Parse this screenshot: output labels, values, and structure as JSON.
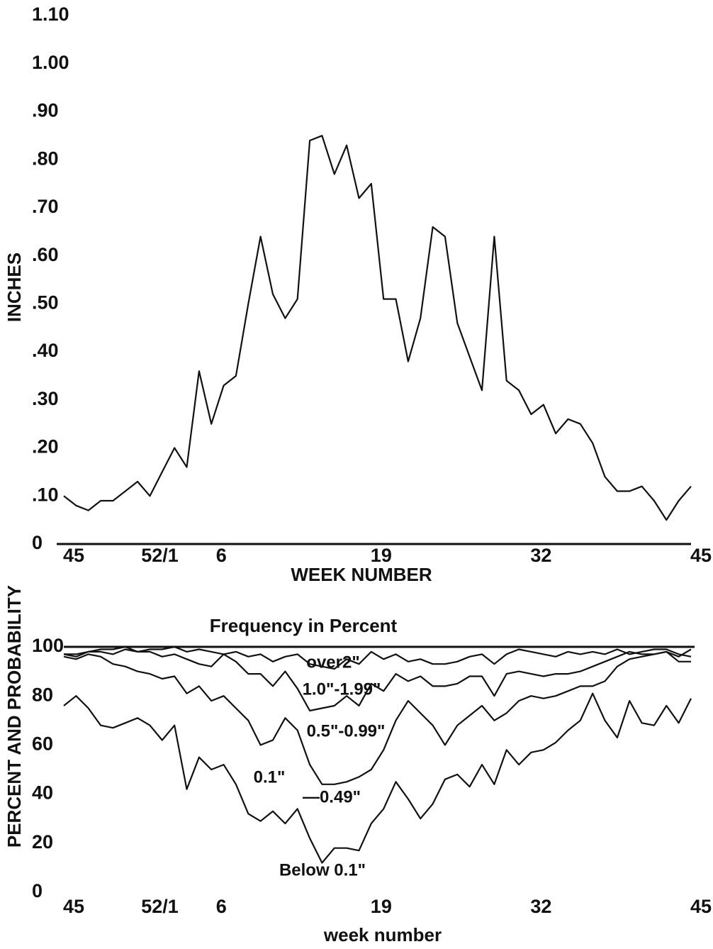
{
  "chart_data": [
    {
      "type": "line",
      "y_label": "INCHES",
      "x_label": "WEEK NUMBER",
      "x": [
        0,
        1,
        2,
        3,
        4,
        5,
        6,
        7,
        8,
        9,
        10,
        11,
        12,
        13,
        14,
        15,
        16,
        17,
        18,
        19,
        20,
        21,
        22,
        23,
        24,
        25,
        26,
        27,
        28,
        29,
        30,
        31,
        32,
        33,
        34,
        35,
        36,
        37,
        38,
        39,
        40,
        41,
        42,
        43,
        44,
        45,
        46,
        47,
        48,
        49,
        50,
        51
      ],
      "xlim": [
        0,
        51
      ],
      "xticks": [
        {
          "value": 0,
          "label": "45"
        },
        {
          "value": 7,
          "label": "52/1"
        },
        {
          "value": 12,
          "label": "6"
        },
        {
          "value": 25,
          "label": "19"
        },
        {
          "value": 38,
          "label": "32"
        },
        {
          "value": 51,
          "label": "45"
        }
      ],
      "ylim": [
        0,
        1.1
      ],
      "yticks": [
        0,
        {
          "value": 0.1,
          "label": ".10"
        },
        {
          "value": 0.2,
          "label": ".20"
        },
        {
          "value": 0.3,
          "label": ".30"
        },
        {
          "value": 0.4,
          "label": ".40"
        },
        {
          "value": 0.5,
          "label": ".50"
        },
        {
          "value": 0.6,
          "label": ".60"
        },
        {
          "value": 0.7,
          "label": ".70"
        },
        {
          "value": 0.8,
          "label": ".80"
        },
        {
          "value": 0.9,
          "label": ".90"
        },
        {
          "value": 1.0,
          "label": "1.00"
        },
        {
          "value": 1.1,
          "label": "1.10"
        }
      ],
      "series": [
        {
          "color": "#111111",
          "values": [
            0.1,
            0.08,
            0.07,
            0.09,
            0.09,
            0.11,
            0.13,
            0.1,
            0.15,
            0.2,
            0.16,
            0.36,
            0.25,
            0.33,
            0.35,
            0.5,
            0.64,
            0.52,
            0.47,
            0.51,
            0.84,
            0.85,
            0.77,
            0.83,
            0.72,
            0.75,
            0.51,
            0.51,
            0.38,
            0.47,
            0.66,
            0.64,
            0.46,
            0.39,
            0.32,
            0.64,
            0.34,
            0.32,
            0.27,
            0.29,
            0.23,
            0.26,
            0.25,
            0.21,
            0.14,
            0.11,
            0.11,
            0.12,
            0.09,
            0.05,
            0.09,
            0.12
          ]
        }
      ]
    },
    {
      "type": "line",
      "title": "Frequency in Percent",
      "y_label": "PERCENT AND PROBABILITY",
      "x_label": "week number",
      "annotations": [
        "over2\"",
        "1.0\"-1.99\"",
        "0.5\"-0.99\"",
        "0.1\"",
        "—0.49\"",
        "Below 0.1\""
      ],
      "x": [
        0,
        1,
        2,
        3,
        4,
        5,
        6,
        7,
        8,
        9,
        10,
        11,
        12,
        13,
        14,
        15,
        16,
        17,
        18,
        19,
        20,
        21,
        22,
        23,
        24,
        25,
        26,
        27,
        28,
        29,
        30,
        31,
        32,
        33,
        34,
        35,
        36,
        37,
        38,
        39,
        40,
        41,
        42,
        43,
        44,
        45,
        46,
        47,
        48,
        49,
        50,
        51
      ],
      "xlim": [
        0,
        51
      ],
      "xticks": [
        {
          "value": 0,
          "label": "45"
        },
        {
          "value": 7,
          "label": "52/1"
        },
        {
          "value": 12,
          "label": "6"
        },
        {
          "value": 25,
          "label": "19"
        },
        {
          "value": 38,
          "label": "32"
        },
        {
          "value": 51,
          "label": "45"
        }
      ],
      "ylim": [
        0,
        100
      ],
      "yticks": [
        0,
        20,
        40,
        60,
        80,
        100
      ],
      "series": [
        {
          "color": "#111111",
          "values": [
            97,
            97,
            98,
            99,
            99,
            100,
            98,
            99,
            99,
            100,
            98,
            99,
            98,
            97,
            98,
            96,
            97,
            94,
            96,
            97,
            93,
            92,
            91,
            95,
            93,
            98,
            95,
            97,
            94,
            95,
            93,
            93,
            94,
            96,
            97,
            93,
            97,
            99,
            98,
            97,
            96,
            98,
            97,
            98,
            97,
            99,
            97,
            98,
            99,
            99,
            97,
            96
          ]
        },
        {
          "color": "#111111",
          "values": [
            97,
            96,
            98,
            98,
            97,
            99,
            98,
            98,
            96,
            97,
            95,
            93,
            92,
            97,
            94,
            89,
            89,
            84,
            90,
            83,
            74,
            75,
            76,
            80,
            76,
            85,
            82,
            89,
            86,
            88,
            84,
            84,
            85,
            88,
            88,
            80,
            89,
            90,
            89,
            88,
            89,
            89,
            90,
            92,
            94,
            96,
            98,
            97,
            97,
            98,
            94,
            94
          ]
        },
        {
          "color": "#111111",
          "values": [
            96,
            95,
            97,
            96,
            93,
            92,
            90,
            89,
            87,
            88,
            81,
            84,
            78,
            80,
            75,
            70,
            60,
            62,
            71,
            66,
            52,
            44,
            44,
            45,
            47,
            50,
            58,
            70,
            78,
            73,
            68,
            60,
            68,
            72,
            76,
            70,
            73,
            78,
            80,
            79,
            80,
            82,
            84,
            84,
            86,
            92,
            95,
            96,
            97,
            98,
            96,
            99
          ]
        },
        {
          "color": "#111111",
          "values": [
            76,
            80,
            75,
            68,
            67,
            69,
            71,
            68,
            62,
            68,
            42,
            55,
            50,
            52,
            44,
            32,
            29,
            33,
            28,
            34,
            22,
            12,
            18,
            18,
            17,
            28,
            34,
            45,
            38,
            30,
            36,
            46,
            48,
            43,
            52,
            44,
            58,
            52,
            57,
            58,
            61,
            66,
            70,
            81,
            70,
            63,
            78,
            69,
            68,
            76,
            69,
            79
          ]
        }
      ]
    }
  ]
}
